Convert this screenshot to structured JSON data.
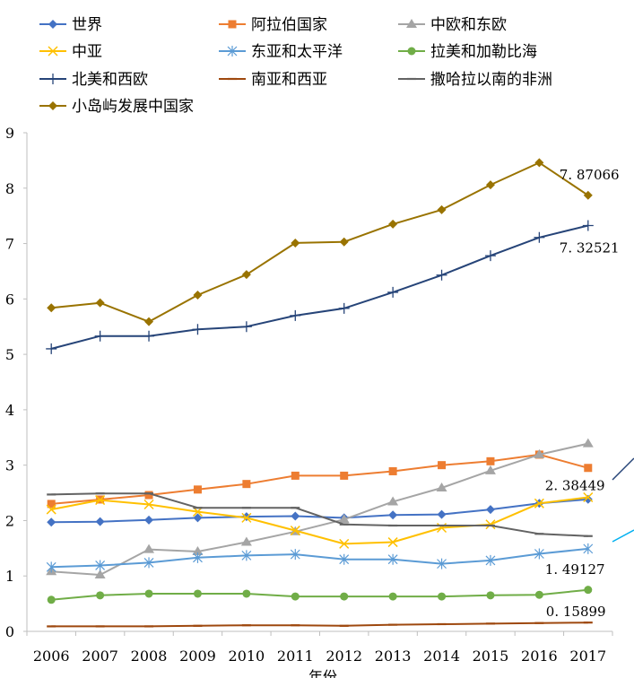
{
  "chart_data": {
    "type": "line",
    "title": "",
    "xlabel": "年份",
    "ylabel": "",
    "ylim": [
      0,
      9
    ],
    "yticks": [
      0,
      1,
      2,
      3,
      4,
      5,
      6,
      7,
      8,
      9
    ],
    "categories": [
      "2006",
      "2007",
      "2008",
      "2009",
      "2010",
      "2011",
      "2012",
      "2013",
      "2014",
      "2015",
      "2016",
      "2017"
    ],
    "series": [
      {
        "name": "世界",
        "color": "#4472C4",
        "marker": "diamond",
        "values": [
          1.97,
          1.98,
          2.01,
          2.05,
          2.07,
          2.08,
          2.05,
          2.1,
          2.11,
          2.2,
          2.31,
          2.38449
        ]
      },
      {
        "name": "阿拉伯国家",
        "color": "#ED7D31",
        "marker": "square",
        "values": [
          2.3,
          2.38,
          2.46,
          2.56,
          2.66,
          2.81,
          2.81,
          2.89,
          3.0,
          3.07,
          3.19,
          2.95
        ]
      },
      {
        "name": "中欧和东欧",
        "color": "#A5A5A5",
        "marker": "triangle",
        "values": [
          1.08,
          1.02,
          1.48,
          1.44,
          1.61,
          1.8,
          2.02,
          2.34,
          2.59,
          2.9,
          3.19,
          3.39
        ]
      },
      {
        "name": "中亚",
        "color": "#FFC000",
        "marker": "x",
        "values": [
          2.2,
          2.37,
          2.29,
          2.16,
          2.05,
          1.82,
          1.58,
          1.61,
          1.87,
          1.93,
          2.31,
          2.42
        ]
      },
      {
        "name": "东亚和太平洋",
        "color": "#5B9BD5",
        "marker": "star",
        "values": [
          1.16,
          1.19,
          1.24,
          1.33,
          1.37,
          1.39,
          1.3,
          1.3,
          1.22,
          1.28,
          1.4,
          1.49127
        ]
      },
      {
        "name": "拉美和加勒比海",
        "color": "#70AD47",
        "marker": "circle",
        "values": [
          0.57,
          0.65,
          0.68,
          0.68,
          0.68,
          0.63,
          0.63,
          0.63,
          0.63,
          0.65,
          0.66,
          0.75
        ]
      },
      {
        "name": "北美和西欧",
        "color": "#264478",
        "marker": "plus",
        "values": [
          5.1,
          5.33,
          5.33,
          5.45,
          5.5,
          5.7,
          5.83,
          6.12,
          6.43,
          6.78,
          7.11,
          7.32521
        ]
      },
      {
        "name": "南亚和西亚",
        "color": "#9E480E",
        "marker": "dash",
        "values": [
          0.09,
          0.09,
          0.09,
          0.1,
          0.11,
          0.11,
          0.1,
          0.12,
          0.13,
          0.14,
          0.15,
          0.15899
        ]
      },
      {
        "name": "撒哈拉以南的非洲",
        "color": "#636363",
        "marker": "dash",
        "values": [
          2.47,
          2.49,
          2.49,
          2.23,
          2.23,
          2.23,
          1.93,
          1.91,
          1.91,
          1.91,
          1.76,
          1.72
        ]
      },
      {
        "name": "小岛屿发展中国家",
        "color": "#997300",
        "marker": "diamond",
        "values": [
          5.84,
          5.93,
          5.59,
          6.07,
          6.44,
          7.01,
          7.03,
          7.35,
          7.61,
          8.06,
          8.46,
          7.87066
        ]
      }
    ],
    "annotations": [
      {
        "text": "7. 87066",
        "series": "小岛屿发展中国家",
        "category": "2017"
      },
      {
        "text": "7. 32521",
        "series": "北美和西欧",
        "category": "2017"
      },
      {
        "text": "2. 38449",
        "series": "世界",
        "category": "2017"
      },
      {
        "text": "1. 49127",
        "series": "东亚和太平洋",
        "category": "2017"
      },
      {
        "text": "0. 15899",
        "series": "南亚和西亚",
        "category": "2017"
      }
    ]
  }
}
